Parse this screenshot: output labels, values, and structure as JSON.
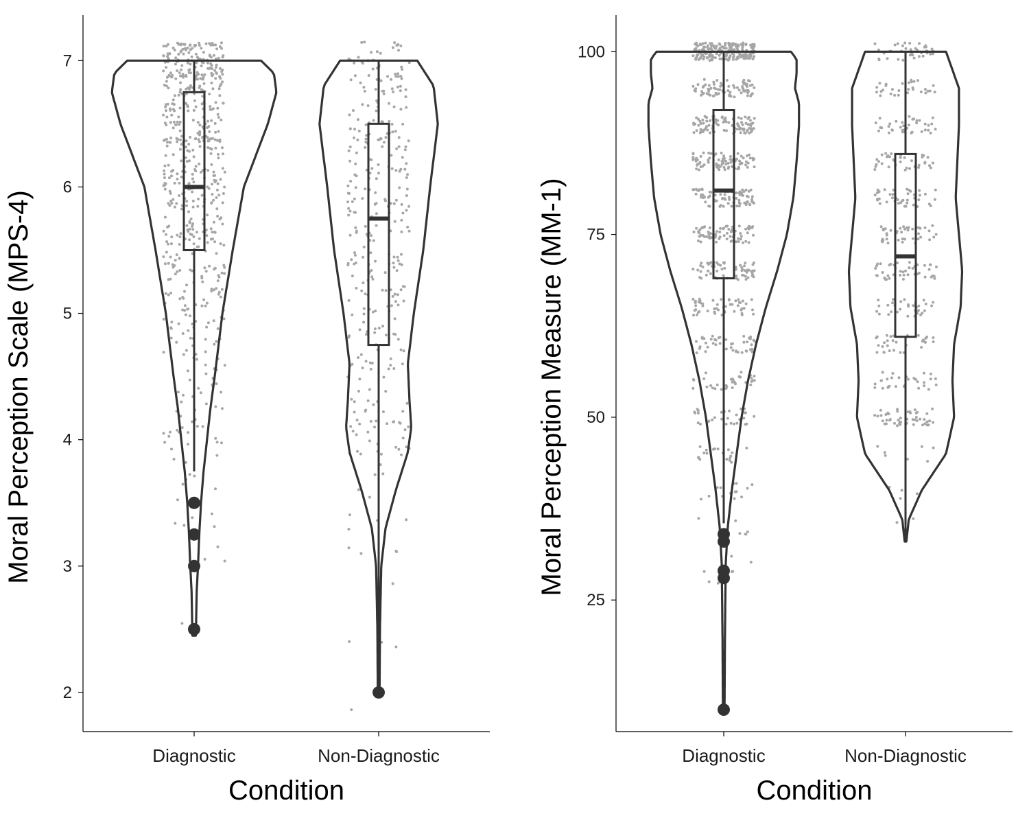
{
  "chart_data": [
    {
      "type": "violin",
      "xlabel": "Condition",
      "ylabel": "Moral Perception Scale (MPS-4)",
      "ylim": [
        1.69,
        7.36
      ],
      "yticks": [
        2,
        3,
        4,
        5,
        6,
        7
      ],
      "categories": [
        "Diagnostic",
        "Non-Diagnostic"
      ],
      "groups": [
        {
          "name": "Diagnostic",
          "box": {
            "q1": 5.5,
            "median": 6.0,
            "q3": 6.75,
            "whisker_low": 3.75,
            "whisker_high": 7.0
          },
          "outliers": [
            3.5,
            3.25,
            3.0,
            2.5
          ],
          "density": [
            [
              2.45,
              0.02
            ],
            [
              2.8,
              0.03
            ],
            [
              3.0,
              0.045
            ],
            [
              3.25,
              0.06
            ],
            [
              3.5,
              0.08
            ],
            [
              3.75,
              0.11
            ],
            [
              4.0,
              0.15
            ],
            [
              4.25,
              0.19
            ],
            [
              4.5,
              0.24
            ],
            [
              5.0,
              0.33
            ],
            [
              5.5,
              0.45
            ],
            [
              6.0,
              0.58
            ],
            [
              6.25,
              0.72
            ],
            [
              6.5,
              0.86
            ],
            [
              6.75,
              0.96
            ],
            [
              6.9,
              0.93
            ],
            [
              7.0,
              0.78
            ]
          ],
          "jitter_n": 620,
          "jitter_weights": [
            [
              2.5,
              1
            ],
            [
              3.0,
              2
            ],
            [
              3.25,
              4
            ],
            [
              3.5,
              4
            ],
            [
              3.75,
              7
            ],
            [
              4.0,
              14
            ],
            [
              4.25,
              12
            ],
            [
              4.5,
              16
            ],
            [
              4.75,
              18
            ],
            [
              5.0,
              30
            ],
            [
              5.25,
              34
            ],
            [
              5.5,
              42
            ],
            [
              5.75,
              48
            ],
            [
              6.0,
              66
            ],
            [
              6.25,
              54
            ],
            [
              6.5,
              64
            ],
            [
              6.75,
              70
            ],
            [
              7.0,
              130
            ]
          ]
        },
        {
          "name": "Non-Diagnostic",
          "box": {
            "q1": 4.75,
            "median": 5.75,
            "q3": 6.5,
            "whisker_low": 2.0,
            "whisker_high": 7.0
          },
          "outliers": [
            2.0
          ],
          "density": [
            [
              1.98,
              0.01
            ],
            [
              2.5,
              0.015
            ],
            [
              3.0,
              0.03
            ],
            [
              3.3,
              0.08
            ],
            [
              3.6,
              0.2
            ],
            [
              3.9,
              0.34
            ],
            [
              4.1,
              0.38
            ],
            [
              4.3,
              0.36
            ],
            [
              4.6,
              0.34
            ],
            [
              5.0,
              0.41
            ],
            [
              5.5,
              0.52
            ],
            [
              6.0,
              0.6
            ],
            [
              6.5,
              0.69
            ],
            [
              6.8,
              0.64
            ],
            [
              7.0,
              0.45
            ]
          ],
          "jitter_n": 340,
          "jitter_weights": [
            [
              2.0,
              1
            ],
            [
              2.5,
              2
            ],
            [
              3.0,
              2
            ],
            [
              3.25,
              2
            ],
            [
              3.5,
              3
            ],
            [
              3.75,
              4
            ],
            [
              4.0,
              18
            ],
            [
              4.25,
              14
            ],
            [
              4.5,
              12
            ],
            [
              4.75,
              14
            ],
            [
              5.0,
              16
            ],
            [
              5.25,
              18
            ],
            [
              5.5,
              22
            ],
            [
              5.75,
              20
            ],
            [
              6.0,
              24
            ],
            [
              6.25,
              24
            ],
            [
              6.5,
              24
            ],
            [
              6.75,
              22
            ],
            [
              7.0,
              26
            ]
          ]
        }
      ]
    },
    {
      "type": "violin",
      "xlabel": "Condition",
      "ylabel": "Moral Perception Measure (MM-1)",
      "ylim": [
        7,
        105
      ],
      "yticks": [
        25,
        50,
        75,
        100
      ],
      "categories": [
        "Diagnostic",
        "Non-Diagnostic"
      ],
      "groups": [
        {
          "name": "Diagnostic",
          "box": {
            "q1": 69,
            "median": 81,
            "q3": 92,
            "whisker_low": 35.5,
            "whisker_high": 100
          },
          "outliers": [
            34,
            33,
            29,
            28,
            10
          ],
          "density": [
            [
              10,
              0.01
            ],
            [
              20,
              0.015
            ],
            [
              30,
              0.025
            ],
            [
              35,
              0.05
            ],
            [
              40,
              0.1
            ],
            [
              45,
              0.16
            ],
            [
              50,
              0.22
            ],
            [
              55,
              0.3
            ],
            [
              60,
              0.4
            ],
            [
              65,
              0.52
            ],
            [
              70,
              0.66
            ],
            [
              75,
              0.78
            ],
            [
              80,
              0.86
            ],
            [
              85,
              0.9
            ],
            [
              90,
              0.93
            ],
            [
              93,
              0.93
            ],
            [
              95,
              0.88
            ],
            [
              97,
              0.9
            ],
            [
              99,
              0.9
            ],
            [
              100,
              0.83
            ]
          ],
          "jitter_n": 900,
          "jitter_weights": [
            [
              28,
              2
            ],
            [
              30,
              3
            ],
            [
              35,
              6
            ],
            [
              40,
              10
            ],
            [
              45,
              14
            ],
            [
              50,
              24
            ],
            [
              55,
              26
            ],
            [
              60,
              32
            ],
            [
              65,
              38
            ],
            [
              70,
              50
            ],
            [
              75,
              56
            ],
            [
              80,
              60
            ],
            [
              85,
              64
            ],
            [
              90,
              70
            ],
            [
              95,
              60
            ],
            [
              100,
              150
            ]
          ]
        },
        {
          "name": "Non-Diagnostic",
          "box": {
            "q1": 61,
            "median": 72,
            "q3": 86,
            "whisker_low": 33,
            "whisker_high": 100
          },
          "outliers": [],
          "density": [
            [
              33,
              0.01
            ],
            [
              36,
              0.04
            ],
            [
              40,
              0.2
            ],
            [
              45,
              0.5
            ],
            [
              50,
              0.6
            ],
            [
              55,
              0.58
            ],
            [
              60,
              0.6
            ],
            [
              65,
              0.68
            ],
            [
              70,
              0.7
            ],
            [
              75,
              0.66
            ],
            [
              80,
              0.62
            ],
            [
              85,
              0.64
            ],
            [
              90,
              0.66
            ],
            [
              95,
              0.66
            ],
            [
              100,
              0.5
            ]
          ],
          "jitter_n": 430,
          "jitter_weights": [
            [
              36,
              2
            ],
            [
              40,
              3
            ],
            [
              45,
              6
            ],
            [
              50,
              40
            ],
            [
              55,
              24
            ],
            [
              60,
              26
            ],
            [
              65,
              30
            ],
            [
              70,
              36
            ],
            [
              75,
              34
            ],
            [
              80,
              34
            ],
            [
              85,
              30
            ],
            [
              90,
              30
            ],
            [
              95,
              24
            ],
            [
              100,
              30
            ]
          ]
        }
      ]
    }
  ]
}
